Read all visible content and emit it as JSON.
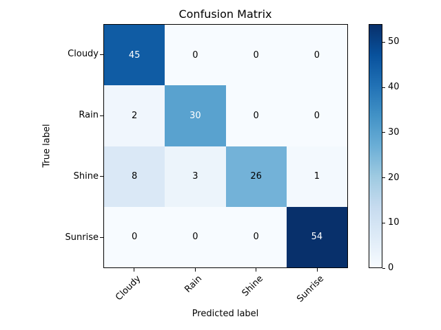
{
  "chart_data": {
    "type": "heatmap",
    "title": "Confusion Matrix",
    "xlabel": "Predicted label",
    "ylabel": "True label",
    "x_categories": [
      "Cloudy",
      "Rain",
      "Shine",
      "Sunrise"
    ],
    "y_categories": [
      "Cloudy",
      "Rain",
      "Shine",
      "Sunrise"
    ],
    "matrix": [
      [
        45,
        0,
        0,
        0
      ],
      [
        2,
        30,
        0,
        0
      ],
      [
        8,
        3,
        26,
        1
      ],
      [
        0,
        0,
        0,
        54
      ]
    ],
    "vmin": 0,
    "vmax": 54,
    "colormap": "Blues",
    "colormap_stops": [
      [
        0.0,
        "#f7fbff"
      ],
      [
        0.125,
        "#deebf7"
      ],
      [
        0.25,
        "#c6dbef"
      ],
      [
        0.375,
        "#9ecae1"
      ],
      [
        0.5,
        "#6baed6"
      ],
      [
        0.625,
        "#4292c6"
      ],
      [
        0.75,
        "#2171b5"
      ],
      [
        0.875,
        "#08519c"
      ],
      [
        1.0,
        "#08306b"
      ]
    ],
    "colorbar_ticks": [
      0,
      10,
      20,
      30,
      40,
      50
    ],
    "x_tick_rotation": 45,
    "legend_position": "right-colorbar",
    "grid": false,
    "colors": {
      "background": "#ffffff",
      "axis": "#000000",
      "cell_text_dark": "#000000",
      "cell_text_light": "#ffffff"
    }
  }
}
